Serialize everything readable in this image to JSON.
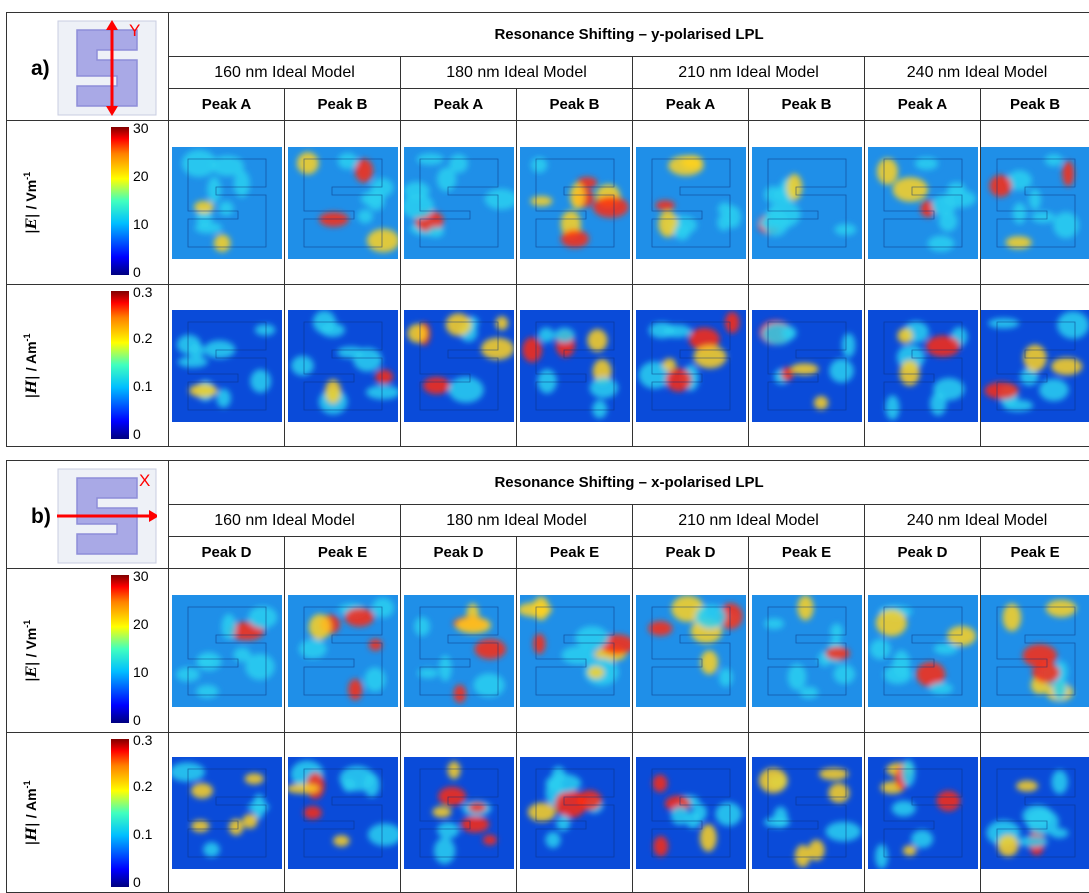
{
  "panels": [
    {
      "label": "a)",
      "title": "Resonance Shifting – y-polarised LPL",
      "axis_letter": "Y",
      "models": [
        "160 nm Ideal Model",
        "180 nm Ideal Model",
        "210 nm Ideal Model",
        "240 nm Ideal Model"
      ],
      "peaks": [
        "Peak A",
        "Peak B",
        "Peak A",
        "Peak B",
        "Peak A",
        "Peak B",
        "Peak A",
        "Peak B"
      ],
      "rows": [
        {
          "quantity": "|E|",
          "unit": "/ Vm",
          "exp": "-1",
          "ticks": [
            "30",
            "20",
            "10",
            "0"
          ]
        },
        {
          "quantity": "|H|",
          "unit": "/ Am",
          "exp": "-1",
          "ticks": [
            "0.3",
            "0.2",
            "0.1",
            "0"
          ]
        }
      ]
    },
    {
      "label": "b)",
      "title": "Resonance Shifting – x-polarised LPL",
      "axis_letter": "X",
      "models": [
        "160 nm Ideal Model",
        "180 nm Ideal Model",
        "210 nm Ideal Model",
        "240 nm Ideal Model"
      ],
      "peaks": [
        "Peak D",
        "Peak E",
        "Peak D",
        "Peak E",
        "Peak D",
        "Peak E",
        "Peak D",
        "Peak E"
      ],
      "rows": [
        {
          "quantity": "|E|",
          "unit": "/ Vm",
          "exp": "-1",
          "ticks": [
            "30",
            "20",
            "10",
            "0"
          ]
        },
        {
          "quantity": "|H|",
          "unit": "/ Am",
          "exp": "-1",
          "ticks": [
            "0.3",
            "0.2",
            "0.1",
            "0"
          ]
        }
      ]
    }
  ],
  "colors": {
    "field_low": "#0a4bd9",
    "field_mid": "#2ad0f0",
    "hot": "#ff2a10",
    "warm": "#ffd21f",
    "arrow": "#ff0000",
    "s_shape": "#a9a9e6"
  }
}
